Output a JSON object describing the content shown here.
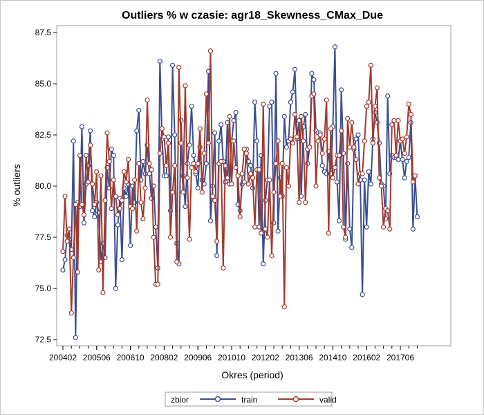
{
  "chart_data": {
    "type": "line",
    "title": "Outliers % w czasie: agr18_Skewness_CMax_Due",
    "xlabel": "Okres (period)",
    "ylabel": "% outliers",
    "ylim": [
      72.5,
      87.5
    ],
    "yticks": [
      "72.5",
      "75.0",
      "77.5",
      "80.0",
      "82.5",
      "85.0",
      "87.5"
    ],
    "xtick_labels": [
      "200402",
      "200506",
      "200610",
      "200802",
      "200906",
      "201010",
      "201202",
      "201306",
      "201410",
      "201602",
      "201706"
    ],
    "x_start_period": "200402",
    "legend": {
      "title": "zbior",
      "position": "bottom"
    },
    "grid": false,
    "series": [
      {
        "name": "train",
        "color": "#3a4f91",
        "values": [
          75.9,
          76.4,
          77.6,
          77.4,
          76.9,
          82.2,
          72.6,
          79.2,
          79.0,
          82.9,
          78.2,
          80.1,
          81.0,
          82.7,
          78.8,
          78.5,
          79.2,
          78.7,
          76.3,
          77.2,
          76.5,
          80.9,
          79.9,
          81.8,
          81.5,
          75.0,
          78.1,
          79.4,
          76.4,
          79.9,
          79.5,
          80.1,
          77.1,
          80.0,
          79.2,
          82.7,
          83.7,
          80.3,
          81.2,
          80.6,
          82.0,
          80.6,
          79.4,
          80.0,
          78.0,
          76.0,
          86.1,
          82.3,
          80.5,
          80.5,
          82.4,
          78.8,
          85.9,
          82.5,
          77.2,
          76.2,
          83.2,
          80.5,
          79.0,
          81.1,
          82.0,
          83.9,
          81.5,
          80.6,
          79.9,
          81.9,
          80.3,
          80.1,
          81.1,
          85.6,
          78.3,
          80.0,
          82.6,
          76.6,
          82.2,
          83.0,
          81.2,
          80.2,
          83.1,
          80.1,
          82.2,
          83.2,
          83.6,
          79.1,
          78.8,
          80.1,
          80.2,
          81.8,
          81.2,
          81.0,
          79.9,
          84.1,
          82.2,
          78.0,
          81.5,
          76.2,
          79.3,
          80.3,
          83.9,
          84.1,
          78.2,
          85.5,
          77.8,
          80.4,
          79.5,
          83.4,
          81.9,
          82.2,
          84.1,
          84.6,
          85.7,
          82.3,
          83.2,
          79.5,
          82.9,
          83.5,
          81.1,
          81.9,
          85.5,
          85.2,
          82.7,
          82.6,
          82.6,
          81.0,
          80.7,
          80.6,
          81.7,
          80.6,
          82.9,
          86.8,
          80.2,
          78.3,
          84.7,
          81.6,
          77.4,
          81.1,
          77.9,
          77.0,
          81.8,
          82.3,
          82.5,
          80.3,
          74.7,
          80.3,
          78.0,
          80.7,
          80.1,
          82.3,
          83.6,
          83.1,
          82.1,
          80.1,
          80.0,
          78.4,
          84.4,
          80.6,
          81.5,
          81.4,
          81.4,
          81.3,
          82.2,
          81.3,
          80.4,
          81.2,
          81.4,
          83.1,
          77.9,
          80.5,
          78.5
        ]
      },
      {
        "name": "valid",
        "color": "#a23a2e",
        "values": [
          76.8,
          79.5,
          77.3,
          77.9,
          73.8,
          76.5,
          79.1,
          75.8,
          81.5,
          79.1,
          78.6,
          81.5,
          80.2,
          82.0,
          80.1,
          79.1,
          80.7,
          75.9,
          80.5,
          74.8,
          79.3,
          82.6,
          81.2,
          78.9,
          80.3,
          79.5,
          78.6,
          78.9,
          79.3,
          80.7,
          80.2,
          81.3,
          79.0,
          78.9,
          80.3,
          77.8,
          81.1,
          79.2,
          78.4,
          79.9,
          84.2,
          81.1,
          80.8,
          77.5,
          75.2,
          75.2,
          81.6,
          82.8,
          82.4,
          81.0,
          82.1,
          77.5,
          79.7,
          81.0,
          76.3,
          85.8,
          82.1,
          79.7,
          84.9,
          80.4,
          77.4,
          80.9,
          81.1,
          80.7,
          81.1,
          82.8,
          79.7,
          81.6,
          84.5,
          82.1,
          86.6,
          79.5,
          79.3,
          77.3,
          81.1,
          81.2,
          76.0,
          81.0,
          80.4,
          83.4,
          80.1,
          82.2,
          80.9,
          80.5,
          78.5,
          80.6,
          81.8,
          81.6,
          80.1,
          80.6,
          80.4,
          78.0,
          80.8,
          80.8,
          77.7,
          84.0,
          77.9,
          77.5,
          80.3,
          76.6,
          79.7,
          81.1,
          82.2,
          79.5,
          81.1,
          74.1,
          80.9,
          80.0,
          82.3,
          82.1,
          83.5,
          82.4,
          79.2,
          83.4,
          82.2,
          79.2,
          81.8,
          81.9,
          84.4,
          84.5,
          80.0,
          82.2,
          82.5,
          81.6,
          82.3,
          84.2,
          77.7,
          82.8,
          80.4,
          80.9,
          81.5,
          81.5,
          82.7,
          78.0,
          77.5,
          83.3,
          81.9,
          83.1,
          81.9,
          81.3,
          80.1,
          80.6,
          80.6,
          82.2,
          83.9,
          84.1,
          85.9,
          82.1,
          83.9,
          84.8,
          80.4,
          80.0,
          78.0,
          78.9,
          78.8,
          77.9,
          83.0,
          83.2,
          81.5,
          83.2,
          82.2,
          82.3,
          81.6,
          82.4,
          84.0,
          83.5,
          80.2,
          80.5
        ]
      }
    ]
  }
}
